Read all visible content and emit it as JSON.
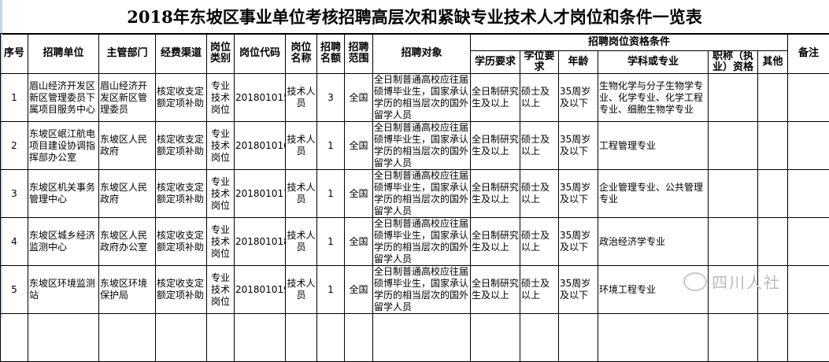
{
  "title": "2018年东坡区事业单位考核招聘高层次和紧缺专业技术人才岗位和条件一览表",
  "headers": {
    "seq": "序号",
    "unit": "招聘单位",
    "dept": "主管部门",
    "funding": "经费渠道",
    "post_type": "岗位类别",
    "post_code": "岗位代码",
    "post_name": "岗位名称",
    "quota": "招聘名额",
    "scope": "招聘范围",
    "target": "招聘对象",
    "qualifications": "招聘岗位资格条件",
    "education": "学历要求",
    "degree": "学位要求",
    "age": "年龄",
    "major": "学科或专业",
    "title_cert": "职称（执业）资格",
    "other": "其他",
    "remarks": "备注"
  },
  "rows": [
    {
      "seq": "1",
      "unit": "眉山经济开发区新区管理委员下属项目服务中心",
      "dept": "眉山经济开发区新区管理委员",
      "funding": "核定收支定额定项补助",
      "post_type": "专业技术岗位",
      "post_code": "201801015",
      "post_name": "技术人员",
      "quota": "3",
      "scope": "全国",
      "target": "全日制普通高校应往届硕博毕业生，国家承认学历的相当层次的国外留学人员",
      "education": "全日制研究生及以上",
      "degree": "硕士及以上",
      "age": "35周岁及以下",
      "major": "生物化学与分子生物学专业、化学专业、化学工程专业、细胞生物学专业",
      "title_cert": "",
      "other": "",
      "remarks": ""
    },
    {
      "seq": "2",
      "unit": "东坡区岷江航电项目建设协调指挥部办公室",
      "dept": "东坡区人民政府",
      "funding": "核定收支定额定项补助",
      "post_type": "专业技术岗位",
      "post_code": "201801016",
      "post_name": "技术人员",
      "quota": "1",
      "scope": "全国",
      "target": "全日制普通高校应往届硕博毕业生，国家承认学历的相当层次的国外留学人员",
      "education": "全日制研究生及以上",
      "degree": "硕士及以上",
      "age": "35周岁及以下",
      "major": "工程管理专业",
      "title_cert": "",
      "other": "",
      "remarks": ""
    },
    {
      "seq": "3",
      "unit": "东坡区机关事务管理中心",
      "dept": "东坡区人民政府",
      "funding": "核定收支定额定项补助",
      "post_type": "专业技术岗位",
      "post_code": "201801017",
      "post_name": "技术人员",
      "quota": "1",
      "scope": "全国",
      "target": "全日制普通高校应往届硕博毕业生，国家承认学历的相当层次的国外留学人员",
      "education": "全日制研究生及以上",
      "degree": "硕士及以上",
      "age": "35周岁及以下",
      "major": "企业管理专业、公共管理专业",
      "title_cert": "",
      "other": "",
      "remarks": ""
    },
    {
      "seq": "4",
      "unit": "东坡区城乡经济监测中心",
      "dept": "东坡区人民政府办公室",
      "funding": "核定收支定额定项补助",
      "post_type": "专业技术岗位",
      "post_code": "201801018",
      "post_name": "技术人员",
      "quota": "1",
      "scope": "全国",
      "target": "全日制普通高校应往届硕博毕业生，国家承认学历的相当层次的国外留学人员",
      "education": "全日制研究生及以上",
      "degree": "硕士及以上",
      "age": "35周岁及以下",
      "major": "政治经济学专业",
      "title_cert": "",
      "other": "",
      "remarks": ""
    },
    {
      "seq": "5",
      "unit": "东坡区环境监测站",
      "dept": "东坡区环境保护局",
      "funding": "核定收支定额定项补助",
      "post_type": "专业技术岗位",
      "post_code": "201801019",
      "post_name": "技术人员",
      "quota": "1",
      "scope": "全国",
      "target": "全日制普通高校应往届硕博毕业生，国家承认学历的相当层次的国外留学人员",
      "education": "全日制研究生及以上",
      "degree": "硕士及以上",
      "age": "35周岁及以下",
      "major": "环境工程专业",
      "title_cert": "",
      "other": "",
      "remarks": ""
    }
  ],
  "watermark": "四川人社"
}
